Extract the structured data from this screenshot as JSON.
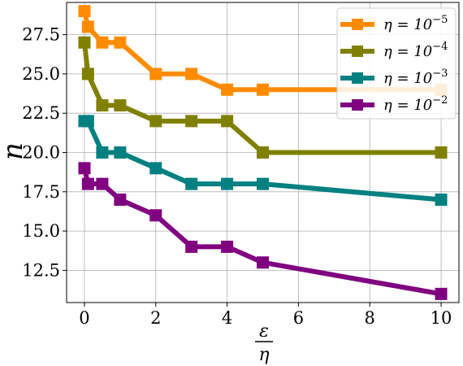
{
  "chart_data": {
    "type": "line",
    "title": "",
    "xlabel": {
      "numerator": "ε",
      "denominator": "η"
    },
    "ylabel": "n",
    "xlim": [
      -0.5,
      10.5
    ],
    "ylim": [
      10.45,
      29.55
    ],
    "x_ticks": [
      0,
      2,
      4,
      6,
      8,
      10
    ],
    "x_tick_labels": [
      "0",
      "2",
      "4",
      "6",
      "8",
      "10"
    ],
    "y_ticks": [
      12.5,
      15.0,
      17.5,
      20.0,
      22.5,
      25.0,
      27.5
    ],
    "y_tick_labels": [
      "12.5",
      "15.0",
      "17.5",
      "20.0",
      "22.5",
      "25.0",
      "27.5"
    ],
    "grid": true,
    "legend_position": "top-right",
    "x": [
      0,
      0.1,
      0.5,
      1,
      2,
      3,
      4,
      5,
      10
    ],
    "series": [
      {
        "name": "η = 10⁻⁵",
        "label_base": "η = 10",
        "label_exp": "−5",
        "color": "#ff8c00",
        "values": [
          29,
          28,
          27,
          27,
          25,
          25,
          24,
          24,
          24
        ]
      },
      {
        "name": "η = 10⁻⁴",
        "label_base": "η = 10",
        "label_exp": "−4",
        "color": "#808000",
        "values": [
          27,
          25,
          23,
          23,
          22,
          22,
          22,
          20,
          20
        ]
      },
      {
        "name": "η = 10⁻³",
        "label_base": "η = 10",
        "label_exp": "−3",
        "color": "#008080",
        "values": [
          22,
          22,
          20,
          20,
          19,
          18,
          18,
          18,
          17
        ]
      },
      {
        "name": "η = 10⁻²",
        "label_base": "η = 10",
        "label_exp": "−2",
        "color": "#800080",
        "values": [
          19,
          18,
          18,
          17,
          16,
          14,
          14,
          13,
          11
        ]
      }
    ]
  }
}
